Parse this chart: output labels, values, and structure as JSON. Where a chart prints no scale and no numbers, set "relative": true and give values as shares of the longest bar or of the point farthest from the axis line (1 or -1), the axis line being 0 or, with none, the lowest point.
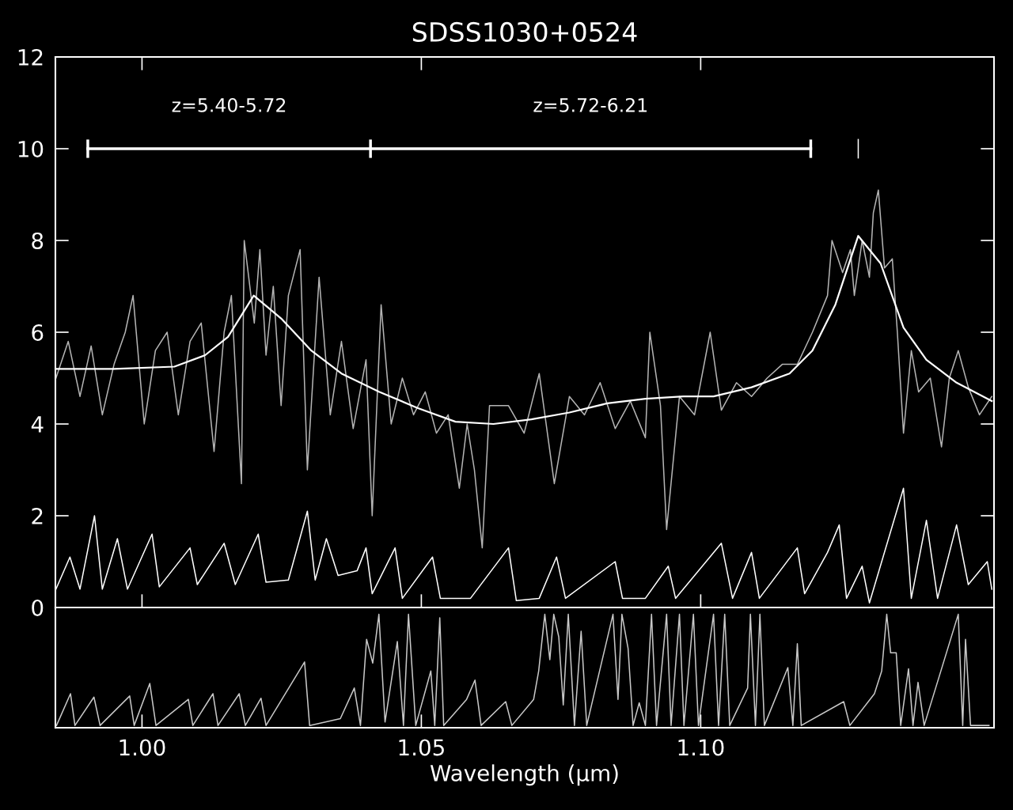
{
  "chart_data": [
    {
      "type": "line",
      "title": "SDSS1030+0524",
      "xlim": [
        0.9845,
        1.1525
      ],
      "ylim": [
        0,
        12
      ],
      "xticks": [
        1.0,
        1.05,
        1.1
      ],
      "yticks": [
        0,
        2,
        4,
        6,
        8,
        10,
        12
      ],
      "tick_labels": "y",
      "line_style": "solid",
      "annotations": [
        {
          "text": "z=5.40-5.72",
          "x": 1.0156,
          "y": 10
        },
        {
          "text": "z=5.72-6.21",
          "x": 1.0803,
          "y": 10
        }
      ],
      "series": [
        {
          "color": "#b4b4b4",
          "marker": "none",
          "x": [
            0.9846,
            0.9868,
            0.9889,
            0.9909,
            0.9929,
            0.995,
            0.997,
            0.9984,
            1.0004,
            1.0024,
            1.0045,
            1.0065,
            1.0086,
            1.0106,
            1.0129,
            1.0147,
            1.016,
            1.0178,
            1.0183,
            1.0201,
            1.0211,
            1.0222,
            1.0235,
            1.0249,
            1.0262,
            1.0283,
            1.0296,
            1.0317,
            1.0337,
            1.0357,
            1.0378,
            1.0401,
            1.0412,
            1.0428,
            1.0446,
            1.0466,
            1.0486,
            1.0507,
            1.0527,
            1.0548,
            1.0568,
            1.0582,
            1.0595,
            1.0609,
            1.0622,
            1.0656,
            1.0684,
            1.0711,
            1.0738,
            1.0765,
            1.0792,
            1.082,
            1.0847,
            1.0874,
            1.0901,
            1.0909,
            1.0928,
            1.0939,
            1.0962,
            1.0989,
            1.1017,
            1.1037,
            1.1064,
            1.1091,
            1.1119,
            1.1146,
            1.1173,
            1.12,
            1.1227,
            1.1235,
            1.1254,
            1.1268,
            1.1275,
            1.1289,
            1.1302,
            1.1309,
            1.1318,
            1.1329,
            1.1343,
            1.1352,
            1.1363,
            1.1377,
            1.139,
            1.1411,
            1.1431,
            1.1445,
            1.1461,
            1.1479,
            1.1499,
            1.1521
          ],
          "values": [
            5.0,
            5.8,
            4.6,
            5.7,
            4.2,
            5.3,
            6.0,
            6.8,
            4.0,
            5.6,
            6.0,
            4.2,
            5.8,
            6.2,
            3.4,
            6.0,
            6.8,
            2.7,
            8.0,
            6.2,
            7.8,
            5.5,
            7.0,
            4.4,
            6.8,
            7.8,
            3.0,
            7.2,
            4.2,
            5.8,
            3.9,
            5.4,
            2.0,
            6.6,
            4.0,
            5.0,
            4.2,
            4.7,
            3.8,
            4.2,
            2.6,
            4.0,
            3.0,
            1.3,
            4.4,
            4.4,
            3.8,
            5.1,
            2.7,
            4.6,
            4.2,
            4.9,
            3.9,
            4.5,
            3.7,
            6.0,
            4.4,
            1.7,
            4.6,
            4.2,
            6.0,
            4.3,
            4.9,
            4.6,
            5.0,
            5.3,
            5.3,
            6.0,
            6.8,
            8.0,
            7.3,
            7.8,
            6.8,
            8.0,
            7.2,
            8.6,
            9.1,
            7.4,
            7.6,
            6.0,
            3.8,
            5.6,
            4.7,
            5.0,
            3.5,
            5.0,
            5.6,
            4.8,
            4.2,
            4.6
          ]
        },
        {
          "color": "#ffffff",
          "marker": "none",
          "x": [
            0.9846,
            0.995,
            1.0058,
            1.0113,
            1.0154,
            1.02,
            1.0249,
            1.0303,
            1.0357,
            1.0425,
            1.0493,
            1.0561,
            1.0629,
            1.0697,
            1.0765,
            1.0833,
            1.0901,
            1.0969,
            1.1023,
            1.1091,
            1.1159,
            1.12,
            1.1241,
            1.1282,
            1.1322,
            1.1363,
            1.1404,
            1.1458,
            1.1521
          ],
          "values": [
            5.2,
            5.2,
            5.25,
            5.5,
            5.9,
            6.8,
            6.3,
            5.6,
            5.1,
            4.7,
            4.35,
            4.05,
            4.0,
            4.1,
            4.25,
            4.45,
            4.55,
            4.6,
            4.6,
            4.8,
            5.1,
            5.6,
            6.6,
            8.1,
            7.5,
            6.1,
            5.4,
            4.9,
            4.5
          ]
        },
        {
          "color": "#ffffff",
          "marker": "none",
          "x": [
            0.9846,
            0.9871,
            0.9889,
            0.9915,
            0.9929,
            0.9956,
            0.9974,
            1.0018,
            1.0031,
            1.0086,
            1.0099,
            1.0147,
            1.0167,
            1.0208,
            1.0222,
            1.0262,
            1.0296,
            1.031,
            1.033,
            1.0351,
            1.0385,
            1.0401,
            1.0412,
            1.0453,
            1.0466,
            1.052,
            1.0534,
            1.0588,
            1.0656,
            1.067,
            1.0711,
            1.0742,
            1.0758,
            1.0847,
            1.086,
            1.0901,
            1.0942,
            1.0955,
            1.1037,
            1.1057,
            1.1091,
            1.1105,
            1.1173,
            1.1186,
            1.1227,
            1.1248,
            1.1261,
            1.1289,
            1.1302,
            1.1363,
            1.1377,
            1.1404,
            1.1424,
            1.1458,
            1.1479,
            1.1513,
            1.1521
          ],
          "values": [
            0.4,
            1.1,
            0.4,
            2.0,
            0.4,
            1.5,
            0.4,
            1.6,
            0.45,
            1.3,
            0.5,
            1.4,
            0.5,
            1.6,
            0.55,
            0.6,
            2.1,
            0.6,
            1.5,
            0.7,
            0.8,
            1.3,
            0.3,
            1.3,
            0.2,
            1.1,
            0.2,
            0.2,
            1.3,
            0.15,
            0.2,
            1.1,
            0.2,
            1.0,
            0.2,
            0.2,
            0.9,
            0.2,
            1.4,
            0.2,
            1.2,
            0.2,
            1.3,
            0.3,
            1.2,
            1.8,
            0.2,
            0.9,
            0.1,
            2.6,
            0.2,
            1.9,
            0.2,
            1.8,
            0.5,
            1.0,
            0.4
          ]
        },
        {
          "color": "#ffffff",
          "marker": "none",
          "x": [
            0.9903,
            1.0409,
            1.1197
          ],
          "values": [
            10,
            10,
            10
          ],
          "errors": [
            0.2,
            0.2,
            0.2
          ]
        },
        {
          "color": "#ffffff",
          "marker": "none",
          "x": [
            1.1282,
            1.1282
          ],
          "values": [
            9.8,
            10.2
          ]
        }
      ]
    },
    {
      "type": "line",
      "relative": true,
      "xlim": [
        0.9845,
        1.1525
      ],
      "xlabel": "Wavelength (μm)",
      "xticks": [
        {
          "value": 1.0,
          "label": "1.00"
        },
        {
          "value": 1.05,
          "label": "1.05"
        },
        {
          "value": 1.1,
          "label": "1.10"
        }
      ],
      "tick_labels": "x",
      "series": [
        {
          "color": "#c8c8c8",
          "marker": "none",
          "x": [
            0.9847,
            0.9872,
            0.988,
            0.9914,
            0.9925,
            0.9978,
            0.9986,
            1.0014,
            1.0025,
            1.0083,
            1.0091,
            1.0127,
            1.0136,
            1.0174,
            1.0185,
            1.0213,
            1.0222,
            1.0291,
            1.03,
            1.0355,
            1.038,
            1.0391,
            1.0402,
            1.0413,
            1.0424,
            1.0435,
            1.0457,
            1.0468,
            1.0477,
            1.049,
            1.0517,
            1.0524,
            1.0533,
            1.054,
            1.0581,
            1.0596,
            1.0607,
            1.0651,
            1.0662,
            1.0701,
            1.071,
            1.0721,
            1.073,
            1.0737,
            1.0746,
            1.0754,
            1.0763,
            1.0774,
            1.0786,
            1.0796,
            1.0843,
            1.0852,
            1.0859,
            1.087,
            1.0879,
            1.089,
            1.0901,
            1.0912,
            1.0921,
            1.0939,
            1.0947,
            1.0962,
            1.097,
            1.0987,
            1.0996,
            1.1023,
            1.1032,
            1.1043,
            1.1052,
            1.1084,
            1.1089,
            1.1098,
            1.1106,
            1.1114,
            1.1156,
            1.1165,
            1.1173,
            1.118,
            1.1256,
            1.1267,
            1.1311,
            1.1324,
            1.1333,
            1.134,
            1.135,
            1.1358,
            1.1372,
            1.138,
            1.1389,
            1.14,
            1.1461,
            1.1469,
            1.1474,
            1.1483,
            1.1516
          ],
          "values": [
            0.02,
            0.3,
            0.02,
            0.27,
            0.02,
            0.28,
            0.02,
            0.39,
            0.02,
            0.25,
            0.02,
            0.3,
            0.02,
            0.3,
            0.02,
            0.26,
            0.02,
            0.58,
            0.02,
            0.08,
            0.35,
            0.02,
            0.78,
            0.57,
            1.0,
            0.05,
            0.76,
            0.02,
            1.0,
            0.02,
            0.5,
            0.02,
            0.97,
            0.02,
            0.25,
            0.42,
            0.02,
            0.23,
            0.02,
            0.25,
            0.5,
            1.0,
            0.6,
            1.0,
            0.8,
            0.2,
            1.0,
            0.02,
            0.85,
            0.02,
            1.0,
            0.25,
            1.0,
            0.7,
            0.02,
            0.22,
            0.02,
            1.0,
            0.02,
            1.0,
            0.02,
            1.0,
            0.02,
            1.0,
            0.02,
            1.0,
            0.02,
            1.0,
            0.02,
            0.35,
            1.0,
            0.02,
            1.0,
            0.02,
            0.53,
            0.02,
            0.74,
            0.02,
            0.23,
            0.02,
            0.3,
            0.5,
            1.0,
            0.66,
            0.66,
            0.02,
            0.52,
            0.02,
            0.4,
            0.02,
            1.0,
            0.02,
            0.78,
            0.02,
            0.02
          ]
        }
      ]
    }
  ]
}
